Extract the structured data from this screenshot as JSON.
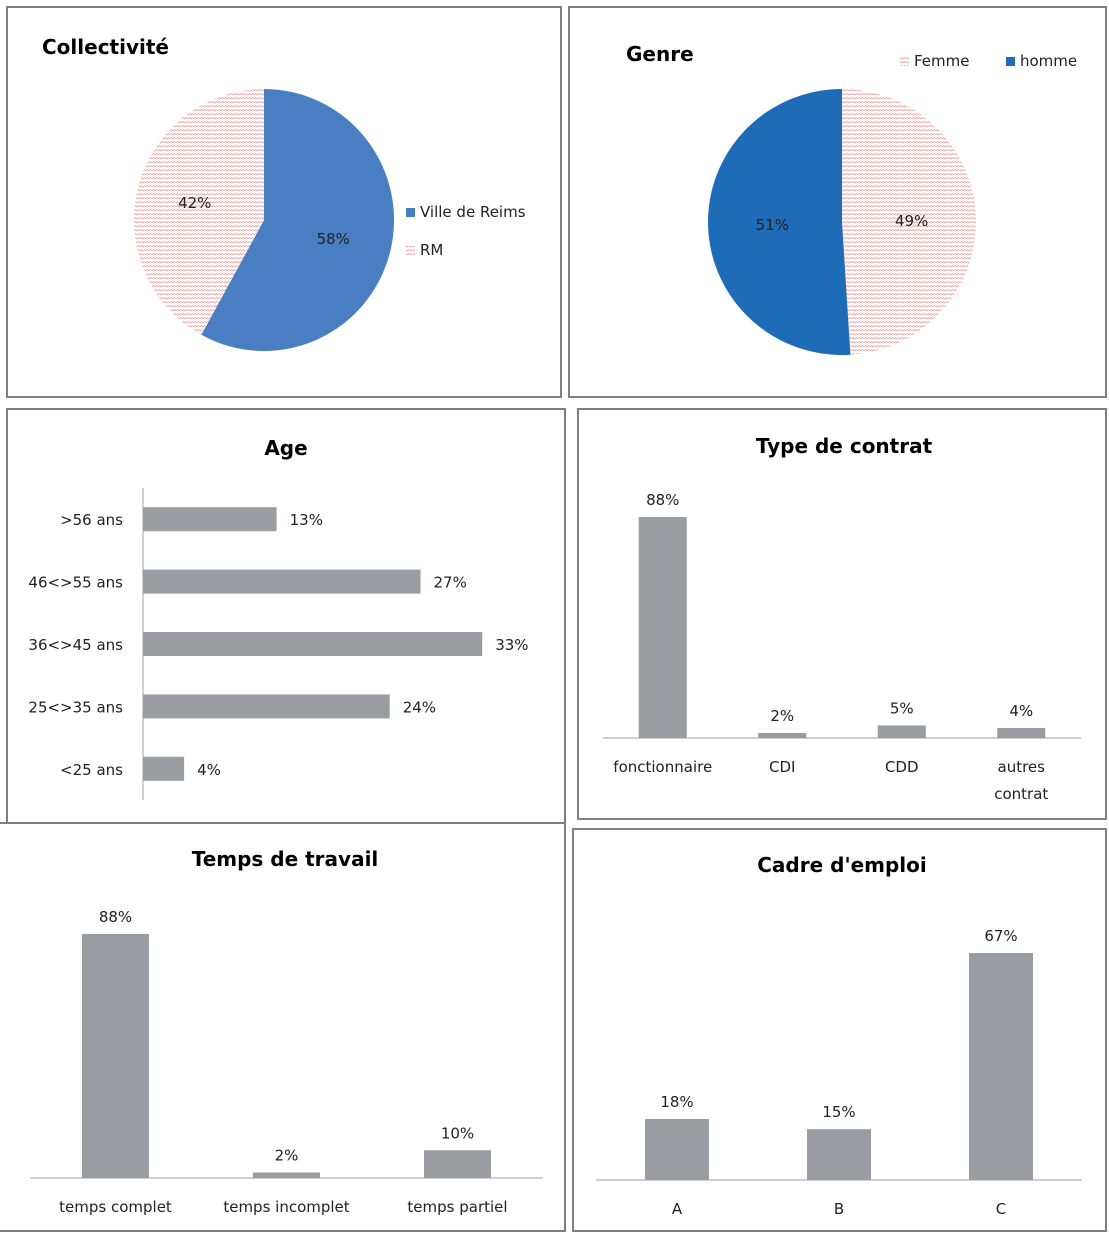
{
  "chart_data": [
    {
      "id": "collectivite",
      "type": "pie",
      "title": "Collectivité",
      "slices": [
        {
          "name": "Ville de Reims",
          "value": 58,
          "label": "58%",
          "color": "#4a7ec2",
          "pattern": "solid"
        },
        {
          "name": "RM",
          "value": 42,
          "label": "42%",
          "color": "#e8a3a3",
          "pattern": "hatch"
        }
      ],
      "legend_position": "right"
    },
    {
      "id": "genre",
      "type": "pie",
      "title": "Genre",
      "slices": [
        {
          "name": "Femme",
          "value": 49,
          "label": "49%",
          "color": "#e8a3a3",
          "pattern": "hatch"
        },
        {
          "name": "homme",
          "value": 51,
          "label": "51%",
          "color": "#1e6bb8",
          "pattern": "solid"
        }
      ],
      "legend_position": "top-right"
    },
    {
      "id": "age",
      "type": "bar",
      "orientation": "horizontal",
      "title": "Age",
      "categories": [
        ">56 ans",
        "46<>55 ans",
        "36<>45 ans",
        "25<>35 ans",
        "<25 ans"
      ],
      "values": [
        13,
        27,
        33,
        24,
        4
      ],
      "labels": [
        "13%",
        "27%",
        "33%",
        "24%",
        "4%"
      ],
      "color": "#9a9ca1"
    },
    {
      "id": "contrat",
      "type": "bar",
      "title": "Type de contrat",
      "categories": [
        "fonctionnaire",
        "CDI",
        "CDD",
        "autres contrat"
      ],
      "values": [
        88,
        2,
        5,
        4
      ],
      "labels": [
        "88%",
        "2%",
        "5%",
        "4%"
      ],
      "color": "#9a9ca1"
    },
    {
      "id": "temps",
      "type": "bar",
      "title": "Temps de travail",
      "categories": [
        "temps complet",
        "temps incomplet",
        "temps partiel"
      ],
      "values": [
        88,
        2,
        10
      ],
      "labels": [
        "88%",
        "2%",
        "10%"
      ],
      "color": "#9a9ca1"
    },
    {
      "id": "cadre",
      "type": "bar",
      "title": "Cadre d'emploi",
      "categories": [
        "A",
        "B",
        "C"
      ],
      "values": [
        18,
        15,
        67
      ],
      "labels": [
        "18%",
        "15%",
        "67%"
      ],
      "color": "#9a9ca1"
    }
  ]
}
